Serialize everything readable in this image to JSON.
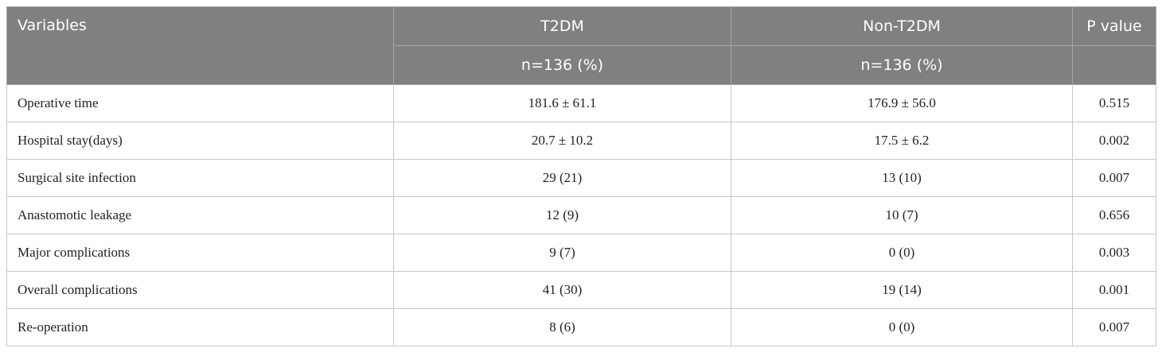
{
  "table": {
    "header": [
      "Variables",
      "T2DM",
      "Non-T2DM",
      "P value"
    ],
    "subheader": [
      "n=136 (%)",
      "n=136 (%)"
    ],
    "rows": [
      [
        "Operative time",
        "181.6 ± 61.1",
        "176.9 ± 56.0",
        "0.515"
      ],
      [
        "Hospital stay(days)",
        "20.7 ± 10.2",
        "17.5 ± 6.2",
        "0.002"
      ],
      [
        "Surgical site infection",
        "29 (21)",
        "13 (10)",
        "0.007"
      ],
      [
        "Anastomotic leakage",
        "12 (9)",
        "10 (7)",
        "0.656"
      ],
      [
        "Major complications",
        "9 (7)",
        "0 (0)",
        "0.003"
      ],
      [
        "Overall complications",
        "41 (30)",
        "19 (14)",
        "0.001"
      ],
      [
        "Re-operation",
        "8 (6)",
        "0 (0)",
        "0.007"
      ]
    ]
  }
}
